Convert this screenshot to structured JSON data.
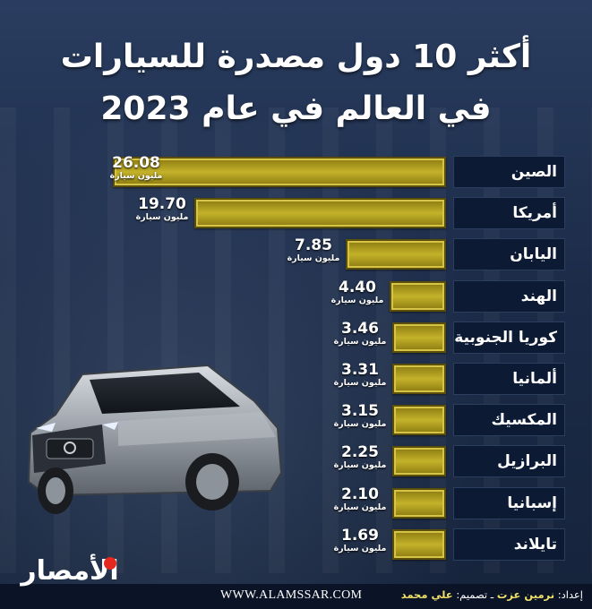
{
  "title_line1": "أكثر 10 دول مصدرة للسيارات",
  "title_line2": "في العالم في عام 2023",
  "colors": {
    "bar": "#c4b22a",
    "label_bg": "#0c1a33",
    "background": "#1f3150"
  },
  "chart_data": {
    "type": "bar",
    "orientation": "horizontal",
    "categories": [
      "الصين",
      "أمريكا",
      "اليابان",
      "الهند",
      "كوريا الجنوبية",
      "ألمانيا",
      "المكسيك",
      "البرازيل",
      "إسبانيا",
      "تايلاند"
    ],
    "values": [
      26.08,
      19.7,
      7.85,
      4.4,
      3.46,
      3.31,
      3.15,
      2.25,
      2.1,
      1.69
    ],
    "value_labels": [
      "26.08",
      "19.70",
      "7.85",
      "4.40",
      "3.46",
      "3.31",
      "3.15",
      "2.25",
      "2.10",
      "1.69"
    ],
    "unit_label": "مليون سيارة",
    "grid": false,
    "legend": "none"
  },
  "footer": {
    "website": "WWW.ALAMSSAR.COM",
    "prepared_label": "إعداد:",
    "prepared_by": "نرمين عزت",
    "separator": " ـ ",
    "design_label": "تصميم:",
    "designed_by": "علي محمد"
  },
  "logo": {
    "text": "الأمصار",
    "accent": "#e5281e"
  },
  "image": {
    "icon": "suv-car-icon"
  }
}
